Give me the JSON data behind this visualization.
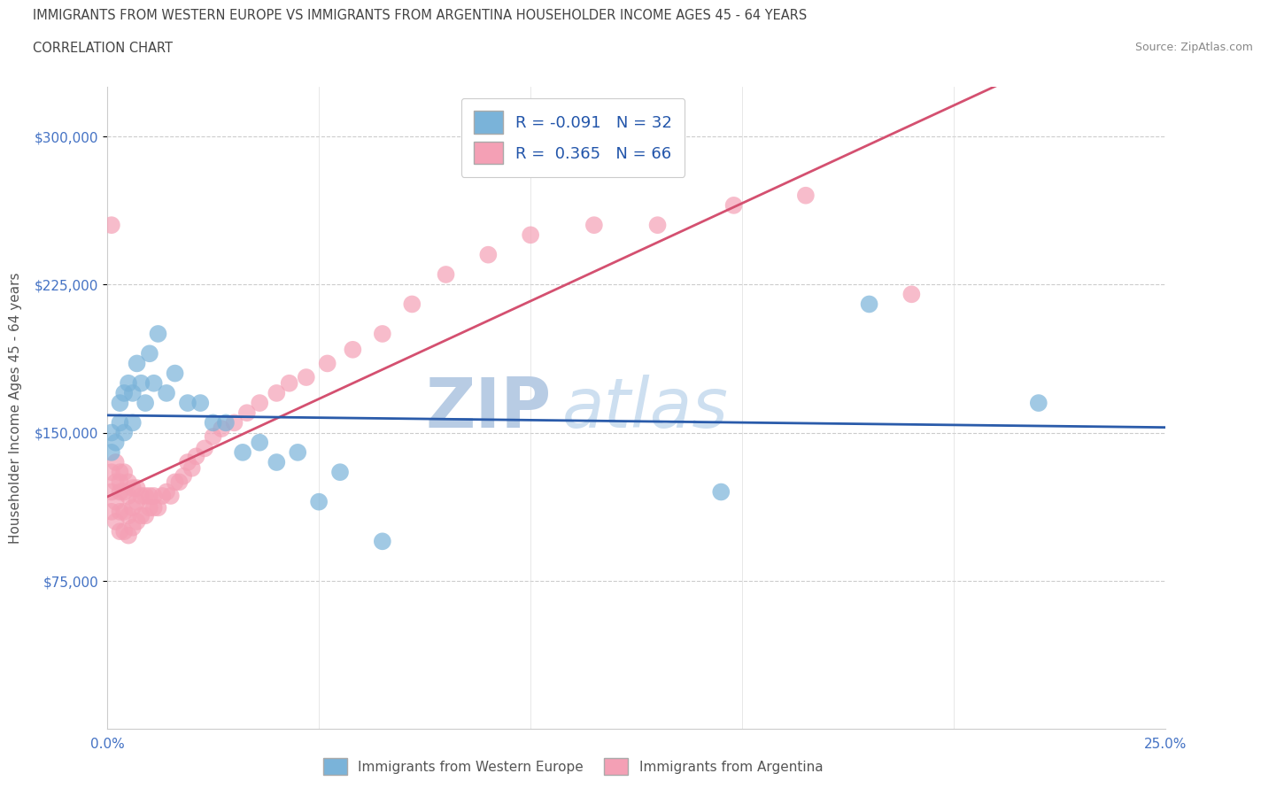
{
  "title_line1": "IMMIGRANTS FROM WESTERN EUROPE VS IMMIGRANTS FROM ARGENTINA HOUSEHOLDER INCOME AGES 45 - 64 YEARS",
  "title_line2": "CORRELATION CHART",
  "source_text": "Source: ZipAtlas.com",
  "ylabel": "Householder Income Ages 45 - 64 years",
  "xlim": [
    0.0,
    0.25
  ],
  "ylim": [
    0,
    325000
  ],
  "yticks": [
    75000,
    150000,
    225000,
    300000
  ],
  "ytick_labels": [
    "$75,000",
    "$150,000",
    "$225,000",
    "$300,000"
  ],
  "xticks": [
    0.0,
    0.05,
    0.1,
    0.15,
    0.2,
    0.25
  ],
  "xtick_labels": [
    "0.0%",
    "",
    "",
    "",
    "",
    "25.0%"
  ],
  "R_blue": -0.091,
  "N_blue": 32,
  "R_pink": 0.365,
  "N_pink": 66,
  "color_blue": "#7ab3d9",
  "color_pink": "#f4a0b5",
  "trendline_blue": "#2a5baa",
  "trendline_pink": "#d45070",
  "watermark_color": "#cddff0",
  "legend_label_blue": "Immigrants from Western Europe",
  "legend_label_pink": "Immigrants from Argentina",
  "blue_x": [
    0.001,
    0.001,
    0.002,
    0.003,
    0.003,
    0.004,
    0.004,
    0.005,
    0.006,
    0.006,
    0.007,
    0.008,
    0.009,
    0.01,
    0.011,
    0.012,
    0.014,
    0.016,
    0.019,
    0.022,
    0.025,
    0.028,
    0.032,
    0.036,
    0.04,
    0.045,
    0.05,
    0.055,
    0.065,
    0.145,
    0.18,
    0.22
  ],
  "blue_y": [
    140000,
    150000,
    145000,
    155000,
    165000,
    150000,
    170000,
    175000,
    155000,
    170000,
    185000,
    175000,
    165000,
    190000,
    175000,
    200000,
    170000,
    180000,
    165000,
    165000,
    155000,
    155000,
    140000,
    145000,
    135000,
    140000,
    115000,
    130000,
    95000,
    120000,
    215000,
    165000
  ],
  "pink_x": [
    0.001,
    0.001,
    0.001,
    0.001,
    0.002,
    0.002,
    0.002,
    0.002,
    0.003,
    0.003,
    0.003,
    0.003,
    0.003,
    0.004,
    0.004,
    0.004,
    0.004,
    0.005,
    0.005,
    0.005,
    0.005,
    0.006,
    0.006,
    0.006,
    0.007,
    0.007,
    0.007,
    0.008,
    0.008,
    0.009,
    0.009,
    0.01,
    0.01,
    0.011,
    0.011,
    0.012,
    0.013,
    0.014,
    0.015,
    0.016,
    0.017,
    0.018,
    0.019,
    0.02,
    0.021,
    0.023,
    0.025,
    0.027,
    0.03,
    0.033,
    0.036,
    0.04,
    0.043,
    0.047,
    0.052,
    0.058,
    0.065,
    0.072,
    0.08,
    0.09,
    0.1,
    0.115,
    0.13,
    0.148,
    0.165,
    0.19
  ],
  "pink_y": [
    110000,
    120000,
    130000,
    255000,
    105000,
    115000,
    125000,
    135000,
    100000,
    110000,
    120000,
    125000,
    130000,
    100000,
    110000,
    120000,
    130000,
    98000,
    108000,
    118000,
    125000,
    102000,
    112000,
    122000,
    105000,
    115000,
    122000,
    108000,
    118000,
    108000,
    118000,
    112000,
    118000,
    112000,
    118000,
    112000,
    118000,
    120000,
    118000,
    125000,
    125000,
    128000,
    135000,
    132000,
    138000,
    142000,
    148000,
    152000,
    155000,
    160000,
    165000,
    170000,
    175000,
    178000,
    185000,
    192000,
    200000,
    215000,
    230000,
    240000,
    250000,
    255000,
    255000,
    265000,
    270000,
    220000
  ]
}
